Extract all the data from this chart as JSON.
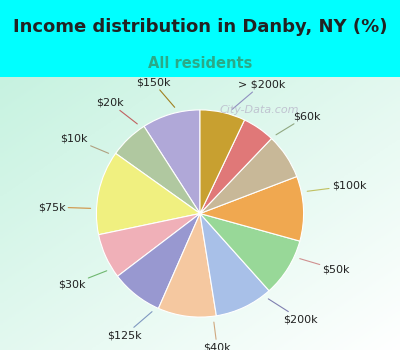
{
  "title": "Income distribution in Danby, NY (%)",
  "subtitle": "All residents",
  "title_color": "#222222",
  "subtitle_color": "#2aaa88",
  "title_fontsize": 13,
  "subtitle_fontsize": 10.5,
  "label_fontsize": 8,
  "labels": [
    "> $200k",
    "$60k",
    "$100k",
    "$50k",
    "$200k",
    "$40k",
    "$125k",
    "$30k",
    "$75k",
    "$10k",
    "$20k",
    "$150k"
  ],
  "values": [
    9,
    6,
    13,
    7,
    8,
    9,
    9,
    9,
    10,
    7,
    5,
    7
  ],
  "colors": [
    "#b0a8d8",
    "#b0c8a0",
    "#f0f080",
    "#f0b0b8",
    "#9898d0",
    "#f5c8a0",
    "#a8c0e8",
    "#98d898",
    "#f0a850",
    "#c8b898",
    "#e07878",
    "#c8a030"
  ],
  "startangle": 90,
  "line_color_inner": "#aaaaaa",
  "label_dist": 1.3,
  "watermark": "City-Data.com",
  "watermark_color": "#bbbbcc",
  "watermark_fontsize": 8
}
